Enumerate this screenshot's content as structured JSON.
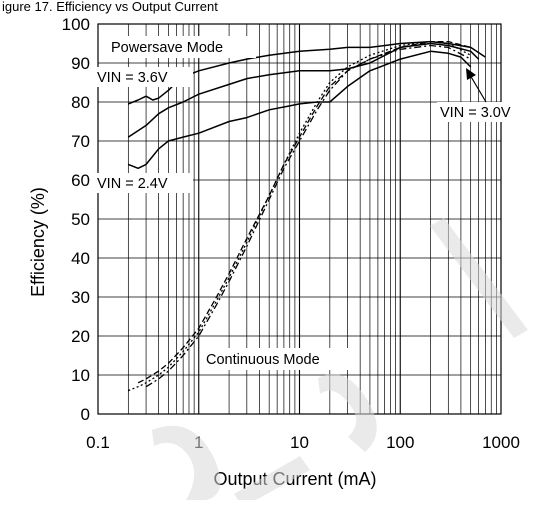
{
  "header_text": "igure 17. Efficiency vs Output Current",
  "chart_data": {
    "type": "line",
    "xlabel": "Output Current (mA)",
    "ylabel": "Efficiency (%)",
    "xscale": "log",
    "xlim": [
      0.1,
      1000
    ],
    "ylim": [
      0,
      100
    ],
    "xticks": [
      "0.1",
      "1",
      "10",
      "100",
      "1000"
    ],
    "yticks": [
      "0",
      "10",
      "20",
      "30",
      "40",
      "50",
      "60",
      "70",
      "80",
      "90",
      "100"
    ],
    "grid": true,
    "annotations": {
      "powersave": "Powersave Mode",
      "vin36": "VIN = 3.6V",
      "vin24": "VIN = 2.4V",
      "vin30": "VIN = 3.0V",
      "continuous": "Continuous Mode"
    },
    "series": [
      {
        "mode": "powersave",
        "vin": "3.6V",
        "style": "solid",
        "x": [
          0.2,
          0.25,
          0.3,
          0.35,
          0.4,
          0.5,
          0.6,
          0.7,
          0.8,
          1,
          2,
          3,
          5,
          10,
          20,
          30,
          50,
          100,
          200,
          300,
          500,
          700
        ],
        "y": [
          79.5,
          80.5,
          81.5,
          80.5,
          81,
          83,
          85,
          86,
          87,
          88,
          90,
          91,
          92,
          93,
          93.5,
          94,
          94,
          95,
          95.5,
          95,
          94,
          91.5
        ]
      },
      {
        "mode": "powersave",
        "vin": "3.0V",
        "style": "solid",
        "x": [
          0.2,
          0.3,
          0.4,
          0.5,
          0.7,
          1,
          2,
          3,
          5,
          10,
          20,
          30,
          50,
          100,
          200,
          300,
          500,
          600
        ],
        "y": [
          71,
          74,
          77,
          78.5,
          80,
          82,
          84.5,
          86,
          87,
          88,
          88,
          88.5,
          90,
          94,
          95,
          94.5,
          93,
          91
        ]
      },
      {
        "mode": "powersave",
        "vin": "2.4V",
        "style": "solid",
        "x": [
          0.2,
          0.25,
          0.3,
          0.4,
          0.5,
          0.7,
          1,
          2,
          3,
          5,
          8,
          10,
          15,
          20,
          30,
          50,
          100,
          200,
          300,
          400,
          500
        ],
        "y": [
          64,
          63,
          64,
          68,
          70,
          71,
          72,
          75,
          76,
          78,
          79,
          79.5,
          80,
          80,
          84,
          88,
          91,
          93,
          92.5,
          91.5,
          89
        ]
      },
      {
        "mode": "continuous",
        "vin": "3.6V",
        "style": "dashed",
        "x": [
          0.25,
          0.3,
          0.4,
          0.5,
          0.7,
          1,
          1.5,
          2,
          3,
          5,
          7,
          10,
          15,
          20,
          30,
          50,
          100,
          200,
          300,
          500
        ],
        "y": [
          8,
          9,
          11,
          13,
          17,
          22,
          30,
          36,
          45,
          56,
          64,
          71,
          79,
          84,
          88,
          91,
          94,
          95.5,
          95.5,
          94
        ]
      },
      {
        "mode": "continuous",
        "vin": "3.0V",
        "style": "dotted",
        "x": [
          0.2,
          0.25,
          0.3,
          0.4,
          0.5,
          0.7,
          1,
          1.5,
          2,
          3,
          5,
          7,
          10,
          15,
          20,
          30,
          50,
          100,
          200,
          300,
          500
        ],
        "y": [
          6,
          7,
          8,
          10,
          12,
          16,
          21,
          29,
          35,
          44,
          56,
          64,
          72,
          80,
          85,
          89,
          92,
          94.5,
          95.5,
          95,
          92
        ]
      },
      {
        "mode": "continuous",
        "vin": "2.4V",
        "style": "dashdot",
        "x": [
          0.3,
          0.4,
          0.5,
          0.7,
          1,
          1.5,
          2,
          3,
          5,
          7,
          10,
          15,
          20,
          30,
          50,
          100,
          200,
          300,
          500
        ],
        "y": [
          7,
          9,
          11,
          15,
          20,
          28,
          34,
          43,
          55,
          63,
          70,
          78,
          83,
          88,
          91,
          93.5,
          94.5,
          94,
          91
        ]
      }
    ]
  }
}
